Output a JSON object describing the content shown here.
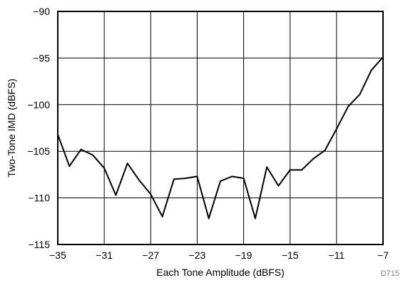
{
  "chart_data": {
    "type": "line",
    "xlabel": "Each Tone Amplitude (dBFS)",
    "ylabel": "Two-Tone IMD (dBFS)",
    "xlim": [
      -35,
      -7
    ],
    "ylim": [
      -115,
      -90
    ],
    "x_ticks": [
      -35,
      -31,
      -27,
      -23,
      -19,
      -15,
      -11,
      -7
    ],
    "y_ticks": [
      -90,
      -95,
      -100,
      -105,
      -110,
      -115
    ],
    "grid": true,
    "line_color": "#000000",
    "figure_id": "D715",
    "series": [
      {
        "x": [
          -35,
          -34,
          -33,
          -32,
          -31,
          -30,
          -29,
          -28,
          -27,
          -26,
          -25,
          -24,
          -23,
          -22,
          -21,
          -20,
          -19,
          -18,
          -17,
          -16,
          -15,
          -14,
          -13,
          -12,
          -11,
          -10,
          -9,
          -8,
          -7
        ],
        "y": [
          -103.2,
          -106.6,
          -104.8,
          -105.4,
          -106.8,
          -109.7,
          -106.3,
          -108.1,
          -109.6,
          -112.0,
          -108.0,
          -107.9,
          -107.7,
          -112.2,
          -108.2,
          -107.7,
          -107.9,
          -112.2,
          -106.7,
          -108.7,
          -107.0,
          -107.0,
          -105.8,
          -104.9,
          -102.6,
          -100.2,
          -98.9,
          -96.3,
          -94.9
        ]
      }
    ]
  }
}
